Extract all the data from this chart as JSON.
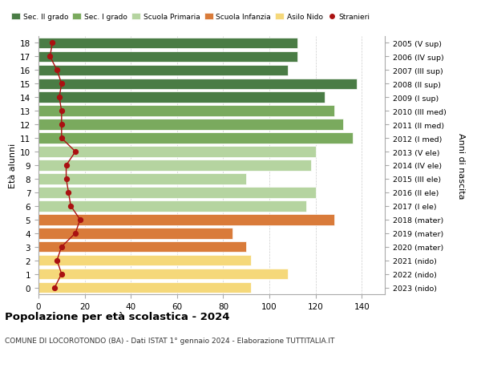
{
  "ages": [
    0,
    1,
    2,
    3,
    4,
    5,
    6,
    7,
    8,
    9,
    10,
    11,
    12,
    13,
    14,
    15,
    16,
    17,
    18
  ],
  "years": [
    "2023 (nido)",
    "2022 (nido)",
    "2021 (nido)",
    "2020 (mater)",
    "2019 (mater)",
    "2018 (mater)",
    "2017 (I ele)",
    "2016 (II ele)",
    "2015 (III ele)",
    "2014 (IV ele)",
    "2013 (V ele)",
    "2012 (I med)",
    "2011 (II med)",
    "2010 (III med)",
    "2009 (I sup)",
    "2008 (II sup)",
    "2007 (III sup)",
    "2006 (IV sup)",
    "2005 (V sup)"
  ],
  "values": [
    92,
    108,
    92,
    90,
    84,
    128,
    116,
    120,
    90,
    118,
    120,
    136,
    132,
    128,
    124,
    138,
    108,
    112,
    112
  ],
  "stranieri": [
    7,
    10,
    8,
    10,
    16,
    18,
    14,
    13,
    12,
    12,
    16,
    10,
    10,
    10,
    9,
    10,
    8,
    5,
    6
  ],
  "bar_colors": [
    "#f5d87a",
    "#f5d87a",
    "#f5d87a",
    "#d97b3a",
    "#d97b3a",
    "#d97b3a",
    "#b5d4a0",
    "#b5d4a0",
    "#b5d4a0",
    "#b5d4a0",
    "#b5d4a0",
    "#7aaa5e",
    "#7aaa5e",
    "#7aaa5e",
    "#4a7c45",
    "#4a7c45",
    "#4a7c45",
    "#4a7c45",
    "#4a7c45"
  ],
  "stranieri_color": "#aa1111",
  "xlim": [
    0,
    150
  ],
  "xticks": [
    0,
    20,
    40,
    60,
    80,
    100,
    120,
    140
  ],
  "ylabel_right": "Anni di nascita",
  "title": "Popolazione per età scolastica - 2024",
  "subtitle": "COMUNE DI LOCOROTONDO (BA) - Dati ISTAT 1° gennaio 2024 - Elaborazione TUTTITALIA.IT",
  "legend_labels": [
    "Sec. II grado",
    "Sec. I grado",
    "Scuola Primaria",
    "Scuola Infanzia",
    "Asilo Nido",
    "Stranieri"
  ],
  "legend_colors": [
    "#4a7c45",
    "#7aaa5e",
    "#b5d4a0",
    "#d97b3a",
    "#f5d87a",
    "#aa1111"
  ],
  "bg_color": "#ffffff",
  "grid_color": "#cccccc"
}
